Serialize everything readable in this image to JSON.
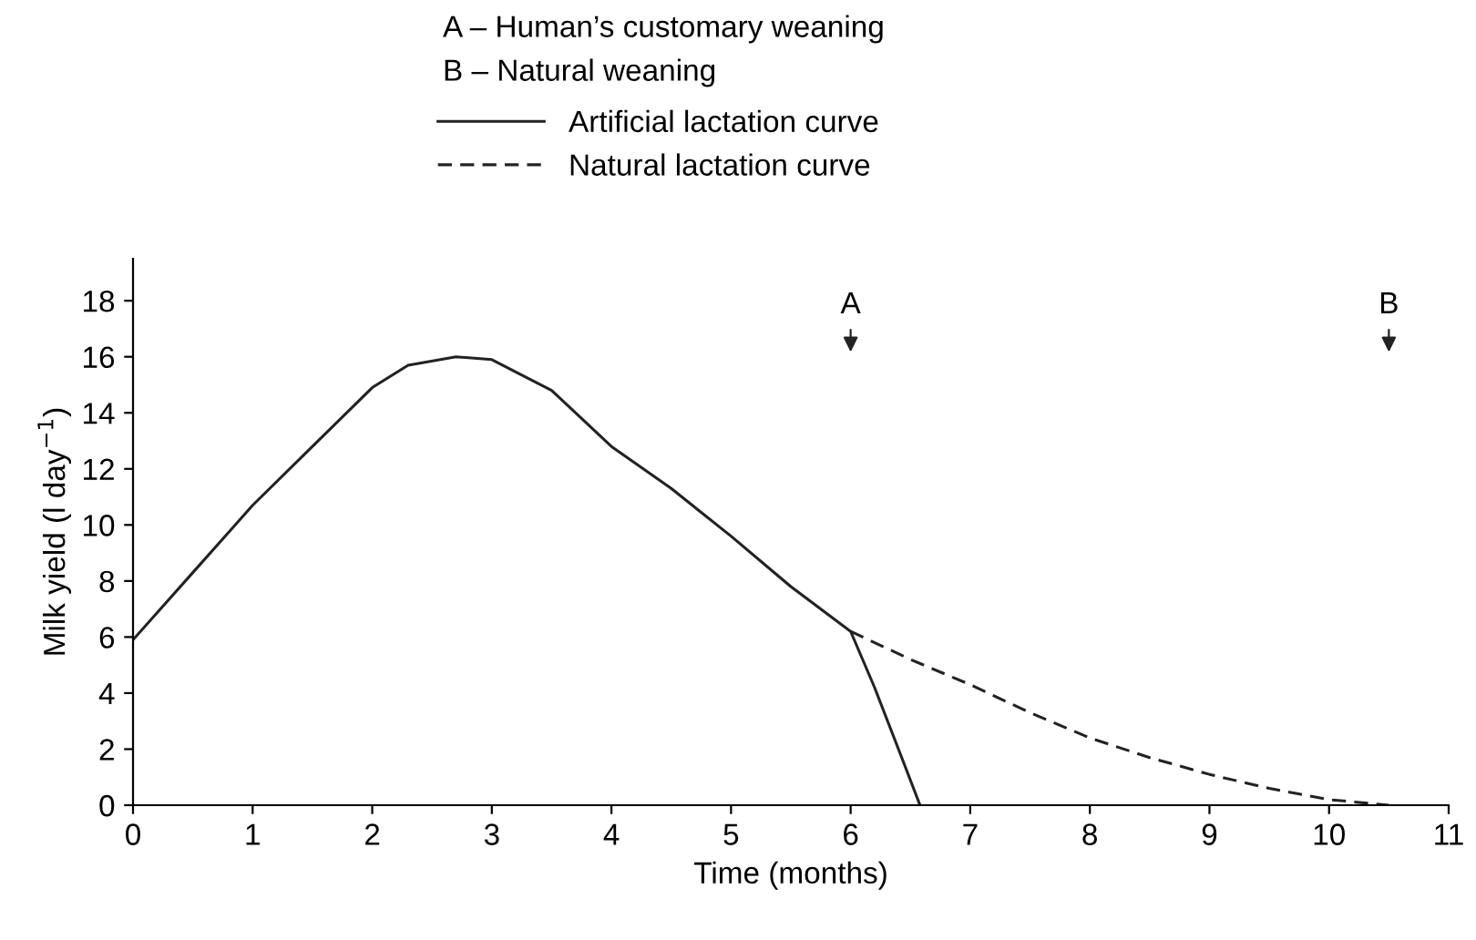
{
  "chart_data": {
    "type": "line",
    "xlabel": "Time (months)",
    "ylabel": "Milk yield (l day$^{−1}$)",
    "series": [
      {
        "name": "Artificial lactation curve",
        "color": "#222222",
        "line_style": "solid",
        "x": [
          0,
          0.5,
          1,
          1.5,
          2,
          2.3,
          2.7,
          3,
          3.5,
          4,
          4.5,
          5,
          5.5,
          6,
          6.2,
          6.4,
          6.58
        ],
        "values": [
          5.9,
          8.3,
          10.7,
          12.8,
          14.9,
          15.7,
          16.0,
          15.9,
          14.8,
          12.8,
          11.3,
          9.6,
          7.8,
          6.2,
          4.2,
          2.0,
          0
        ]
      },
      {
        "name": "Natural lactation curve",
        "color": "#222222",
        "line_style": "dashed",
        "x": [
          6,
          6.5,
          7,
          7.5,
          8,
          8.5,
          9,
          9.5,
          10,
          10.5
        ],
        "values": [
          6.2,
          5.2,
          4.3,
          3.3,
          2.4,
          1.7,
          1.1,
          0.6,
          0.2,
          0
        ]
      }
    ],
    "annotations": [
      "A – Human’s customary weaning",
      "B – Natural weaning",
      "A",
      "B"
    ],
    "xlim": [
      0,
      11
    ],
    "xticks": [
      0,
      1,
      2,
      3,
      4,
      5,
      6,
      7,
      8,
      9,
      10,
      11
    ],
    "ylim": [
      0,
      19.5
    ],
    "yticks": [
      0,
      2,
      4,
      6,
      8,
      10,
      12,
      14,
      16,
      18
    ],
    "grid": false,
    "legend": "top",
    "marker": "none"
  }
}
